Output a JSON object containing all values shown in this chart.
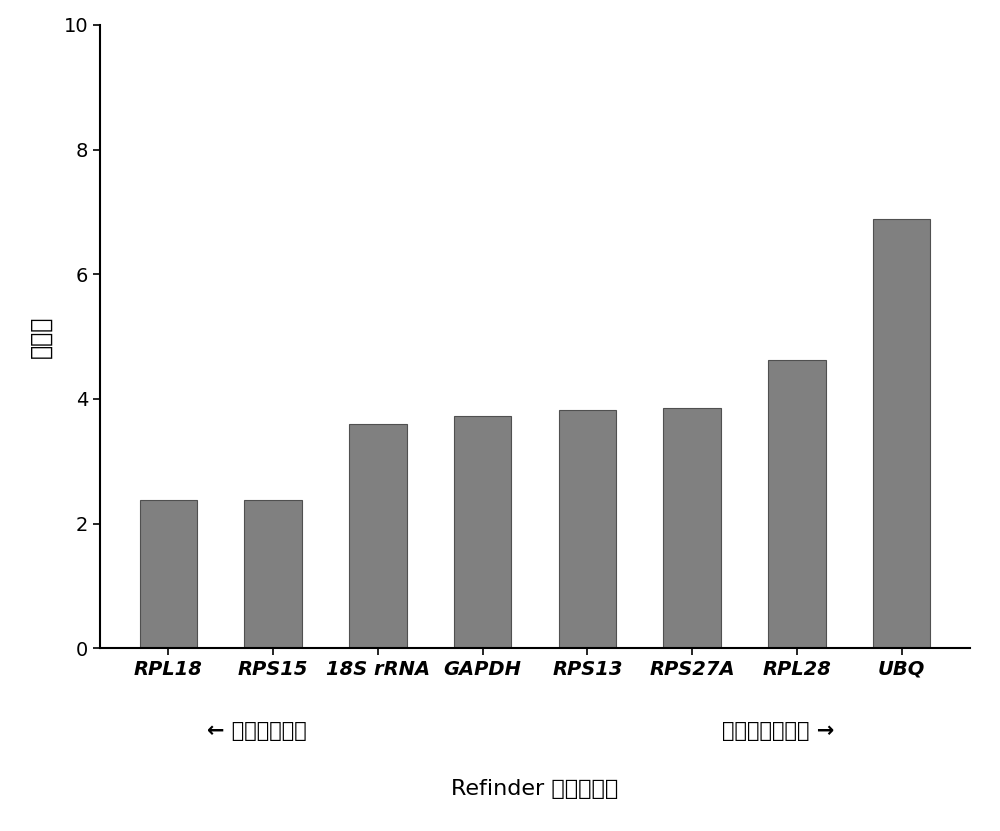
{
  "categories": [
    "RPL18",
    "RPS15",
    "18S rRNA",
    "GAPDH",
    "RPS13",
    "RPS27A",
    "RPL28",
    "UBQ"
  ],
  "values": [
    2.38,
    2.38,
    3.59,
    3.72,
    3.82,
    3.86,
    4.62,
    6.88
  ],
  "bar_color": "#808080",
  "bar_edgecolor": "#505050",
  "ylabel": "稳定値",
  "xlabel": "Refinder 综合评价法",
  "ylim": [
    0,
    10
  ],
  "yticks": [
    0,
    2,
    4,
    6,
    8,
    10
  ],
  "left_label": "← 最稳定的基因",
  "right_label": "最不稳定的基因 →",
  "background_color": "#ffffff",
  "ylabel_fontsize": 17,
  "xlabel_fontsize": 16,
  "tick_fontsize": 14,
  "annotation_fontsize": 15,
  "bar_width": 0.55
}
